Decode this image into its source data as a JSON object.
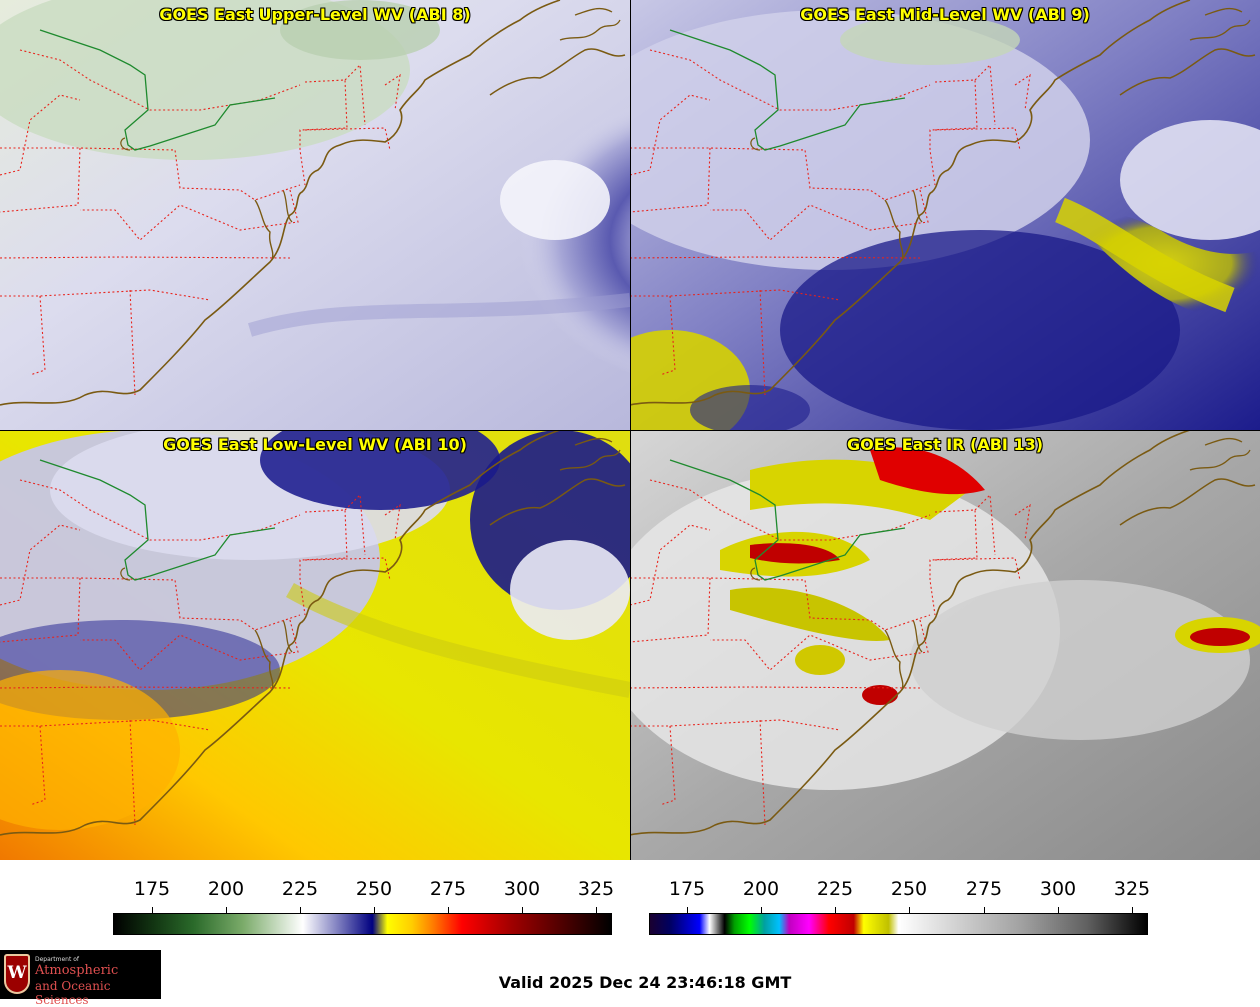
{
  "panels": [
    {
      "title": "GOES East Upper-Level WV (ABI 8)"
    },
    {
      "title": "GOES East Mid-Level WV (ABI 9)"
    },
    {
      "title": "GOES East Low-Level WV (ABI 10)"
    },
    {
      "title": "GOES East IR (ABI 13)"
    }
  ],
  "colorbars": {
    "wv": {
      "ticks": [
        "175",
        "200",
        "225",
        "250",
        "275",
        "300",
        "325"
      ]
    },
    "ir": {
      "ticks": [
        "175",
        "200",
        "225",
        "250",
        "275",
        "300",
        "325"
      ]
    }
  },
  "colors": {
    "state_borders": "#e8231c",
    "coastlines": "#7a5a12",
    "lake_outline": "#1e8a2e",
    "title_text": "#ffff00"
  },
  "logo": {
    "crest_letter": "W",
    "line_small": "Department of",
    "line1": "Atmospheric",
    "line2": "and Oceanic Sciences"
  },
  "valid_time": "Valid 2025 Dec 24 23:46:18 GMT"
}
